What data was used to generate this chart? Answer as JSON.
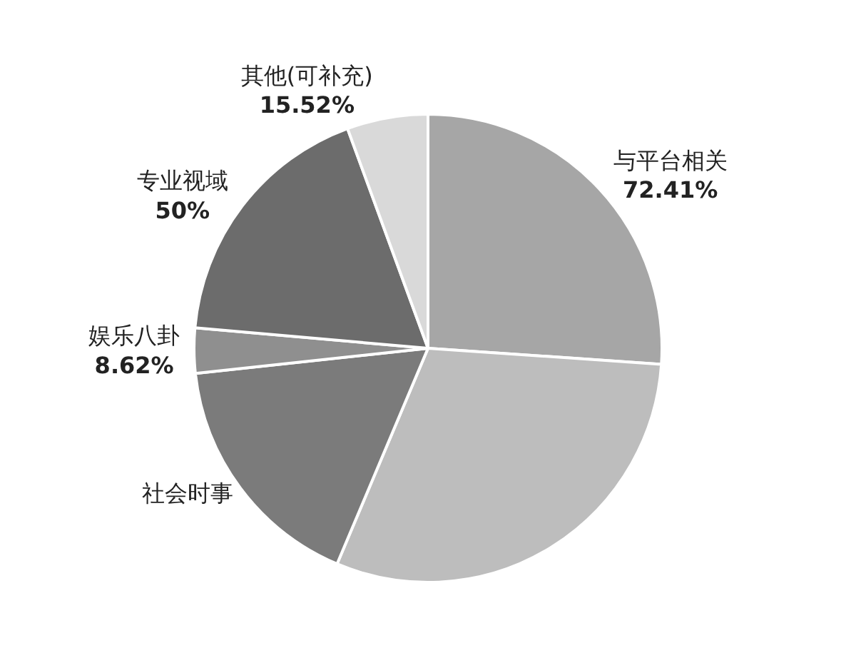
{
  "chart_data": {
    "type": "pie",
    "categories": [
      "与平台相关",
      null,
      "社会时事",
      "娱乐八卦",
      "专业视域",
      "其他(可补充)"
    ],
    "values": [
      72.41,
      84,
      47,
      8.62,
      50,
      15.52
    ],
    "value_labels": [
      "72.41%",
      null,
      null,
      "8.62%",
      "50%",
      "15.52%"
    ],
    "colors": [
      "#a6a6a6",
      "#bdbdbd",
      "#7b7b7b",
      "#8f8f8f",
      "#6c6c6c",
      "#d9d9d9"
    ],
    "legend": false
  }
}
